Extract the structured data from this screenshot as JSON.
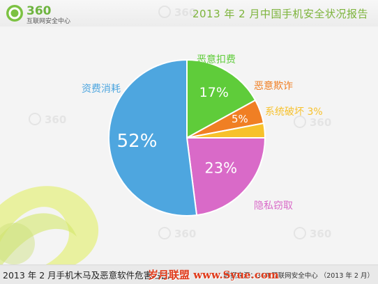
{
  "header": {
    "logo_text": "360",
    "logo_subtitle": "互联网安全中心",
    "report_title": "2013 年 2 月中国手机安全状况报告"
  },
  "watermark": {
    "text": "360"
  },
  "chart_data": {
    "type": "pie",
    "title": "",
    "slices": [
      {
        "label": "恶意扣费",
        "value": 17,
        "display": "17%",
        "color": "#5fcc3a"
      },
      {
        "label": "恶意欺诈",
        "value": 5,
        "display": "5%",
        "color": "#f07f24"
      },
      {
        "label": "系统破坏",
        "value": 3,
        "display": "3%",
        "color": "#f7c12b"
      },
      {
        "label": "隐私窃取",
        "value": 23,
        "display": "23%",
        "color": "#d96ac8"
      },
      {
        "label": "资费消耗",
        "value": 52,
        "display": "52%",
        "color": "#4ea6df"
      }
    ]
  },
  "footer": {
    "caption": "2013 年 2 月手机木马及恶意软件危害占比",
    "source": "数据来源：360 互联网安全中心 （2013 年 2 月）",
    "site_stamp": "岁月联盟 www.Syue.com"
  }
}
